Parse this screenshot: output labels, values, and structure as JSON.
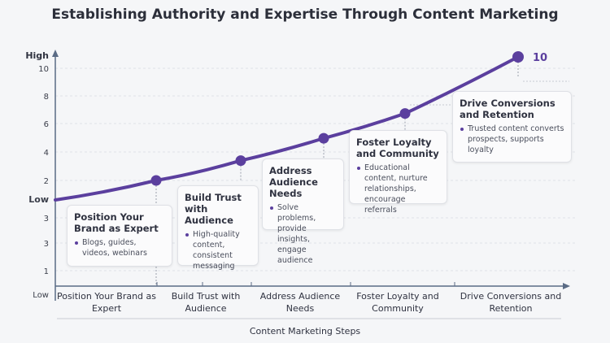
{
  "chart_data": {
    "type": "line",
    "title": "Establishing Authority and Expertise Through Content Marketing",
    "xlabel": "Content Marketing Steps",
    "ylabel": "",
    "y_axis_top_label": "High",
    "y_tick_labels": [
      "10",
      "8",
      "6",
      "4",
      "2",
      "Low",
      "3",
      "3",
      "1",
      "Low"
    ],
    "categories": [
      "Position Your Brand as Expert",
      "Build Trust with Audience",
      "Address Audience Needs",
      "Foster Loyalty and Community",
      "Drive Conversions and Retention"
    ],
    "start_label": "Low",
    "values": [
      2,
      3.6,
      5.4,
      7.4,
      10
    ],
    "end_data_label": "10",
    "grid": true,
    "colors": {
      "line": "#5b3f9e",
      "axis": "#5a6b85",
      "grid": "#d8dbe2"
    }
  },
  "cards": [
    {
      "title": "Position Your Brand as Expert",
      "bullet": "Blogs, guides, videos, webinars"
    },
    {
      "title": "Build Trust with Audience",
      "bullet": "High-quality content, consistent messaging"
    },
    {
      "title": "Address Audience Needs",
      "bullet": "Solve problems, provide insights, engage audience"
    },
    {
      "title": "Foster Loyalty and Community",
      "bullet": "Educational content, nurture relationships, encourage referrals"
    },
    {
      "title": "Drive Conversions and Retention",
      "bullet": "Trusted content converts prospects, supports loyalty"
    }
  ]
}
